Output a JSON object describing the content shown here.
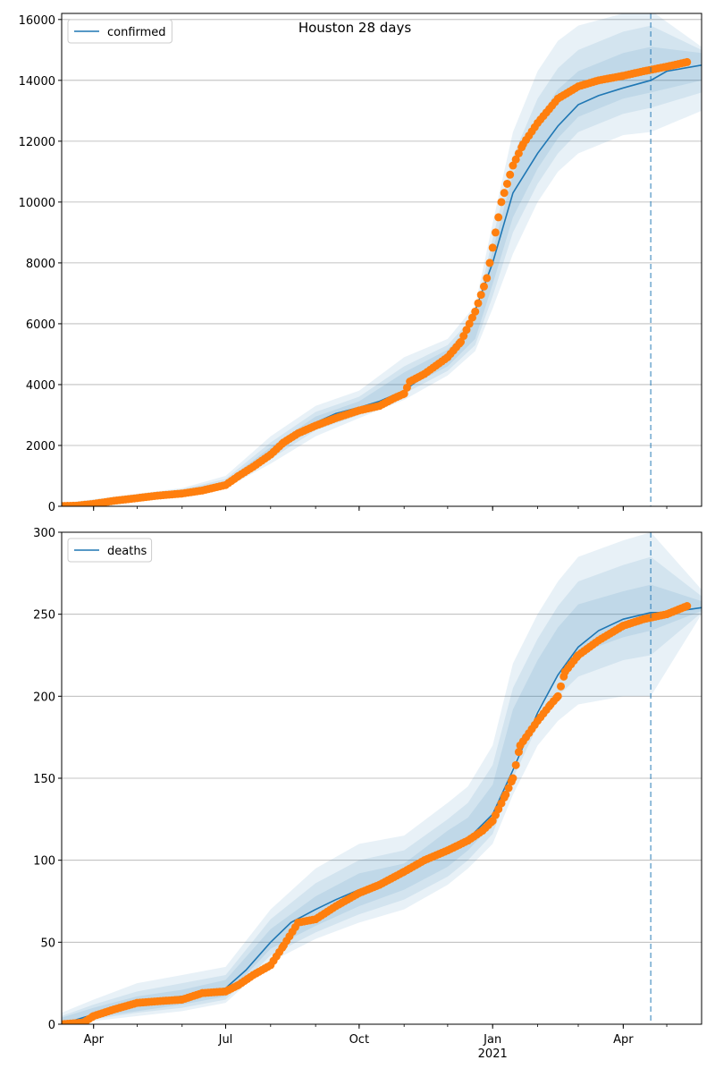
{
  "colors": {
    "model": "#1f77b4",
    "observed": "#ff7f0e",
    "band": "#1f77b4",
    "grid": "#b0b0b0"
  },
  "chart_data": [
    {
      "type": "line",
      "title": "Houston 28 days",
      "legend": "top-left",
      "legend_label": "confirmed",
      "grid": "y",
      "ylim": [
        0,
        16200
      ],
      "yticks": [
        0,
        2000,
        4000,
        6000,
        8000,
        10000,
        12000,
        14000,
        16000
      ],
      "xlim": [
        "2020-03-10",
        "2021-05-25"
      ],
      "forecast_start": "2021-04-20",
      "bands": [
        {
          "x": [
            "2020-03-10",
            "2020-06-01",
            "2020-07-01",
            "2020-08-01",
            "2020-09-01",
            "2020-10-01",
            "2020-11-01",
            "2020-12-01",
            "2020-12-20",
            "2021-01-01",
            "2021-01-15",
            "2021-02-01",
            "2021-02-15",
            "2021-03-01",
            "2021-04-01",
            "2021-04-20",
            "2021-05-25"
          ],
          "lower": [
            0,
            400,
            600,
            1400,
            2300,
            2900,
            3500,
            4300,
            5100,
            6500,
            8300,
            10000,
            11000,
            11600,
            12200,
            12300,
            13000
          ],
          "upper": [
            100,
            600,
            1000,
            2300,
            3300,
            3800,
            4900,
            5500,
            6600,
            9300,
            12300,
            14300,
            15300,
            15800,
            16200,
            16300,
            15100
          ]
        },
        {
          "x": [
            "2020-03-10",
            "2020-06-01",
            "2020-07-01",
            "2020-08-01",
            "2020-09-01",
            "2020-10-01",
            "2020-11-01",
            "2020-12-01",
            "2020-12-20",
            "2021-01-01",
            "2021-01-15",
            "2021-02-01",
            "2021-02-15",
            "2021-03-01",
            "2021-04-01",
            "2021-04-20",
            "2021-05-25"
          ],
          "lower": [
            0,
            440,
            650,
            1550,
            2500,
            3000,
            3700,
            4450,
            5300,
            6900,
            9000,
            10600,
            11600,
            12300,
            12900,
            13100,
            13600
          ],
          "upper": [
            70,
            560,
            900,
            2100,
            3100,
            3600,
            4600,
            5300,
            6300,
            8800,
            11500,
            13400,
            14400,
            15000,
            15600,
            15800,
            15000
          ]
        },
        {
          "x": [
            "2020-03-10",
            "2020-06-01",
            "2020-07-01",
            "2020-08-01",
            "2020-09-01",
            "2020-10-01",
            "2020-11-01",
            "2020-12-01",
            "2020-12-20",
            "2021-01-01",
            "2021-01-15",
            "2021-02-01",
            "2021-02-15",
            "2021-03-01",
            "2021-04-01",
            "2021-04-20",
            "2021-05-25"
          ],
          "lower": [
            0,
            470,
            700,
            1650,
            2650,
            3100,
            3850,
            4600,
            5500,
            7300,
            9500,
            11100,
            12100,
            12800,
            13400,
            13600,
            14000
          ],
          "upper": [
            50,
            530,
            820,
            1950,
            2950,
            3450,
            4400,
            5150,
            6100,
            8400,
            10900,
            12700,
            13700,
            14300,
            14900,
            15100,
            14900
          ]
        }
      ],
      "model": {
        "x": [
          "2020-03-10",
          "2020-04-01",
          "2020-05-01",
          "2020-06-01",
          "2020-07-01",
          "2020-07-15",
          "2020-08-01",
          "2020-08-15",
          "2020-09-01",
          "2020-09-15",
          "2020-10-01",
          "2020-10-15",
          "2020-11-01",
          "2020-11-15",
          "2020-12-01",
          "2020-12-15",
          "2021-01-01",
          "2021-01-15",
          "2021-02-01",
          "2021-02-15",
          "2021-03-01",
          "2021-03-15",
          "2021-04-01",
          "2021-04-20",
          "2021-05-01",
          "2021-05-25"
        ],
        "y": [
          10,
          70,
          280,
          480,
          780,
          1200,
          1800,
          2300,
          2750,
          3050,
          3250,
          3450,
          3800,
          4300,
          4900,
          5800,
          8000,
          10300,
          11600,
          12500,
          13200,
          13500,
          13750,
          14000,
          14300,
          14500
        ]
      },
      "observed": {
        "x": [
          "2020-03-10",
          "2020-03-20",
          "2020-04-01",
          "2020-04-15",
          "2020-05-01",
          "2020-05-15",
          "2020-06-01",
          "2020-06-15",
          "2020-07-01",
          "2020-07-10",
          "2020-07-20",
          "2020-08-01",
          "2020-08-10",
          "2020-08-20",
          "2020-09-01",
          "2020-09-15",
          "2020-10-01",
          "2020-10-15",
          "2020-10-25",
          "2020-11-01",
          "2020-11-05",
          "2020-11-15",
          "2020-12-01",
          "2020-12-10",
          "2020-12-20",
          "2020-12-28",
          "2021-01-01",
          "2021-01-07",
          "2021-01-15",
          "2021-01-22",
          "2021-02-01",
          "2021-02-15",
          "2021-03-01",
          "2021-03-15",
          "2021-04-01",
          "2021-04-15",
          "2021-05-01",
          "2021-05-15"
        ],
        "y": [
          10,
          20,
          80,
          180,
          270,
          350,
          420,
          520,
          700,
          1000,
          1300,
          1700,
          2100,
          2400,
          2650,
          2900,
          3150,
          3300,
          3550,
          3700,
          4100,
          4350,
          4900,
          5400,
          6400,
          7500,
          8500,
          10000,
          11200,
          11900,
          12600,
          13400,
          13800,
          14000,
          14150,
          14300,
          14450,
          14600
        ]
      }
    },
    {
      "type": "line",
      "legend": "top-left",
      "legend_label": "deaths",
      "grid": "y",
      "ylim": [
        0,
        300
      ],
      "yticks": [
        0,
        50,
        100,
        150,
        200,
        250,
        300
      ],
      "xlim": [
        "2020-03-10",
        "2021-05-25"
      ],
      "xticks": [
        {
          "date": "2020-04-01",
          "label": "Apr"
        },
        {
          "date": "2020-07-01",
          "label": "Jul"
        },
        {
          "date": "2020-10-01",
          "label": "Oct"
        },
        {
          "date": "2021-01-01",
          "label": "Jan",
          "sublabel": "2021"
        },
        {
          "date": "2021-04-01",
          "label": "Apr"
        }
      ],
      "forecast_start": "2021-04-20",
      "bands": [
        {
          "x": [
            "2020-03-10",
            "2020-04-01",
            "2020-05-01",
            "2020-06-01",
            "2020-07-01",
            "2020-08-01",
            "2020-09-01",
            "2020-10-01",
            "2020-11-01",
            "2020-12-01",
            "2020-12-15",
            "2021-01-01",
            "2021-01-15",
            "2021-02-01",
            "2021-02-15",
            "2021-03-01",
            "2021-04-01",
            "2021-04-20",
            "2021-05-25"
          ],
          "lower": [
            0,
            2,
            5,
            8,
            13,
            38,
            52,
            62,
            70,
            85,
            95,
            110,
            140,
            170,
            185,
            195,
            200,
            200,
            250
          ],
          "upper": [
            7,
            15,
            25,
            30,
            35,
            70,
            95,
            110,
            115,
            135,
            145,
            170,
            220,
            250,
            270,
            285,
            295,
            300,
            265
          ]
        },
        {
          "x": [
            "2020-03-10",
            "2020-04-01",
            "2020-05-01",
            "2020-06-01",
            "2020-07-01",
            "2020-08-01",
            "2020-09-01",
            "2020-10-01",
            "2020-11-01",
            "2020-12-01",
            "2020-12-15",
            "2021-01-01",
            "2021-01-15",
            "2021-02-01",
            "2021-02-15",
            "2021-03-01",
            "2021-04-01",
            "2021-04-20",
            "2021-05-25"
          ],
          "lower": [
            0,
            3,
            7,
            10,
            15,
            42,
            56,
            67,
            76,
            90,
            100,
            116,
            150,
            182,
            200,
            212,
            222,
            225,
            251
          ],
          "upper": [
            5,
            12,
            20,
            25,
            30,
            64,
            86,
            100,
            106,
            125,
            135,
            158,
            205,
            235,
            255,
            270,
            280,
            285,
            261
          ]
        },
        {
          "x": [
            "2020-03-10",
            "2020-04-01",
            "2020-05-01",
            "2020-06-01",
            "2020-07-01",
            "2020-08-01",
            "2020-09-01",
            "2020-10-01",
            "2020-11-01",
            "2020-12-01",
            "2020-12-15",
            "2021-01-01",
            "2021-01-15",
            "2021-02-01",
            "2021-02-15",
            "2021-03-01",
            "2021-04-01",
            "2021-04-20",
            "2021-05-25"
          ],
          "lower": [
            0,
            4,
            8,
            12,
            17,
            46,
            60,
            72,
            82,
            96,
            106,
            122,
            158,
            192,
            212,
            226,
            236,
            240,
            252
          ],
          "upper": [
            4,
            10,
            17,
            21,
            27,
            58,
            78,
            92,
            98,
            118,
            126,
            146,
            192,
            222,
            242,
            256,
            264,
            268,
            258
          ]
        }
      ],
      "model": {
        "x": [
          "2020-03-10",
          "2020-04-01",
          "2020-04-15",
          "2020-05-01",
          "2020-06-01",
          "2020-07-01",
          "2020-07-15",
          "2020-08-01",
          "2020-08-15",
          "2020-09-01",
          "2020-09-15",
          "2020-10-01",
          "2020-10-15",
          "2020-11-01",
          "2020-11-15",
          "2020-12-01",
          "2020-12-15",
          "2021-01-01",
          "2021-01-15",
          "2021-02-01",
          "2021-02-15",
          "2021-03-01",
          "2021-03-15",
          "2021-04-01",
          "2021-04-20",
          "2021-05-01",
          "2021-05-25"
        ],
        "y": [
          0,
          6,
          10,
          14,
          17,
          22,
          33,
          50,
          62,
          70,
          76,
          82,
          86,
          91,
          98,
          106,
          113,
          128,
          155,
          190,
          213,
          230,
          240,
          247,
          251,
          251,
          254
        ]
      },
      "observed": {
        "x": [
          "2020-03-10",
          "2020-03-25",
          "2020-04-01",
          "2020-04-15",
          "2020-05-01",
          "2020-05-15",
          "2020-06-01",
          "2020-06-15",
          "2020-07-01",
          "2020-07-10",
          "2020-07-20",
          "2020-08-01",
          "2020-08-10",
          "2020-08-20",
          "2020-09-01",
          "2020-09-15",
          "2020-10-01",
          "2020-10-15",
          "2020-11-01",
          "2020-11-15",
          "2020-12-01",
          "2020-12-15",
          "2020-12-25",
          "2021-01-01",
          "2021-01-10",
          "2021-01-15",
          "2021-01-20",
          "2021-02-01",
          "2021-02-10",
          "2021-02-15",
          "2021-02-20",
          "2021-03-01",
          "2021-03-15",
          "2021-04-01",
          "2021-04-15",
          "2021-05-01",
          "2021-05-15"
        ],
        "y": [
          0,
          1,
          5,
          9,
          13,
          14,
          15,
          19,
          20,
          24,
          30,
          36,
          48,
          62,
          64,
          72,
          80,
          85,
          93,
          100,
          106,
          112,
          118,
          124,
          140,
          150,
          170,
          185,
          195,
          200,
          215,
          225,
          234,
          243,
          247,
          250,
          255
        ]
      }
    }
  ]
}
